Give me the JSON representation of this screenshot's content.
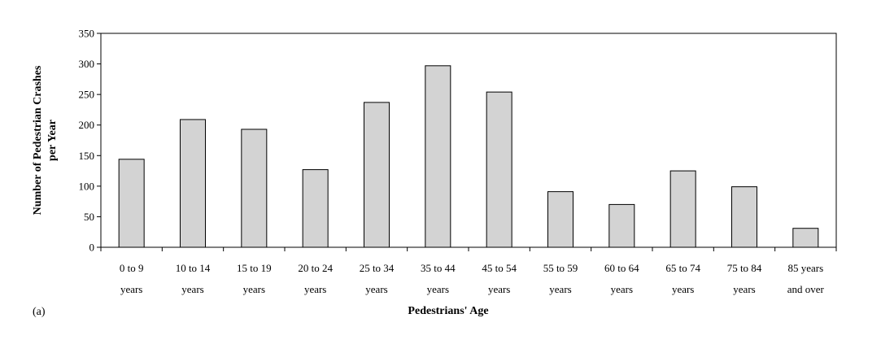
{
  "panel_label": "(a)",
  "chart_data": {
    "type": "bar",
    "title": "",
    "xlabel": "Pedestrians' Age",
    "ylabel": "Number of Pedestrian Crashes per Year",
    "ylabel_lines": [
      "Number of Pedestrian Crashes",
      "per Year"
    ],
    "ylim": [
      0,
      350
    ],
    "yticks": [
      0,
      50,
      100,
      150,
      200,
      250,
      300,
      350
    ],
    "categories": [
      [
        "0 to 9",
        "years"
      ],
      [
        "10 to 14",
        "years"
      ],
      [
        "15 to 19",
        "years"
      ],
      [
        "20 to 24",
        "years"
      ],
      [
        "25 to 34",
        "years"
      ],
      [
        "35 to 44",
        "years"
      ],
      [
        "45 to 54",
        "years"
      ],
      [
        "55 to 59",
        "years"
      ],
      [
        "60 to 64",
        "years"
      ],
      [
        "65 to 74",
        "years"
      ],
      [
        "75 to 84",
        "years"
      ],
      [
        "85 years",
        "and over"
      ]
    ],
    "values": [
      144,
      209,
      193,
      127,
      237,
      297,
      254,
      91,
      70,
      125,
      99,
      31
    ],
    "bar_color": "#d3d3d3",
    "bar_stroke": "#000000",
    "grid": false,
    "legend": "none"
  }
}
